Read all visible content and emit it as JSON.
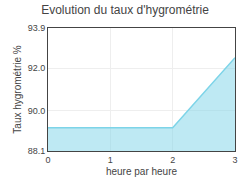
{
  "chart_data": {
    "type": "area",
    "title": "Evolution du taux d'hygrométrie",
    "xlabel": "heure par heure",
    "ylabel": "Taux hygrométrie %",
    "x": [
      0,
      2,
      3
    ],
    "values": [
      89.2,
      89.2,
      92.5
    ],
    "color": "#7dd4e8",
    "xlim": [
      0,
      3
    ],
    "ylim": [
      88.1,
      93.9
    ],
    "xticks": [
      0,
      1,
      2,
      3
    ],
    "yticks": [
      88.1,
      {
        "value": 90.0,
        "label": "90.0"
      },
      {
        "value": 92.0,
        "label": "92.0"
      },
      93.9
    ],
    "grid": true
  }
}
